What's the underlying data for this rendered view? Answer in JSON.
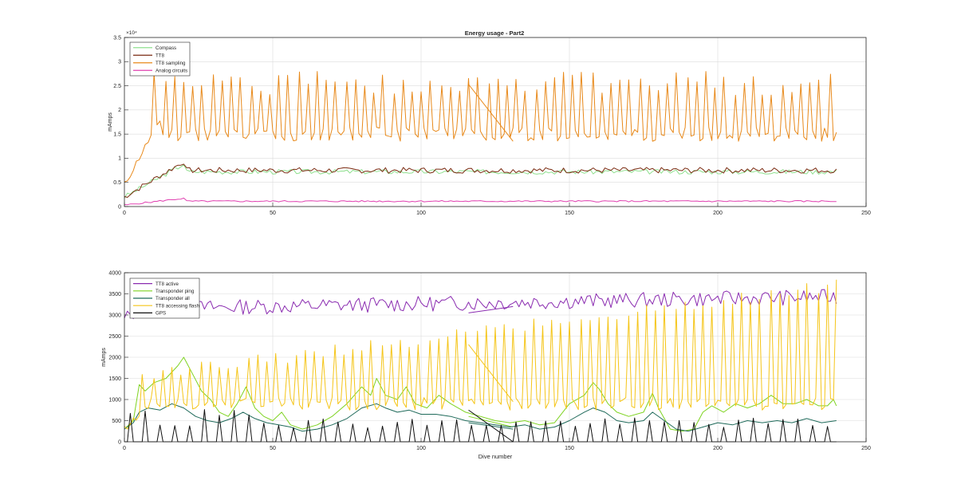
{
  "figure_title": "Energy usage - Part2",
  "chart_data": [
    {
      "type": "line",
      "title": "Energy usage - Part2",
      "xlabel": "",
      "ylabel": "mAmps",
      "xlim": [
        0,
        250
      ],
      "ylim": [
        0,
        35000
      ],
      "y_exponent_label": "×10⁴",
      "y_tick_labels": [
        "0",
        "0.5",
        "1",
        "1.5",
        "2",
        "2.5",
        "3",
        "3.5"
      ],
      "y_tick_values": [
        0,
        5000,
        10000,
        15000,
        20000,
        25000,
        30000,
        35000
      ],
      "x_tick_labels": [
        "0",
        "50",
        "100",
        "150",
        "200",
        "250"
      ],
      "x_tick_values": [
        0,
        50,
        100,
        150,
        200,
        250
      ],
      "grid": true,
      "legend_position": "top-left",
      "series": [
        {
          "name": "Compass",
          "color": "#8fe08f",
          "pattern": {
            "kind": "noisy",
            "start": 2000,
            "ramp_to": 8800,
            "ramp_end": 20,
            "base": 7200,
            "amp": 500,
            "seed": 3,
            "x_max": 240
          }
        },
        {
          "name": "TT8",
          "color": "#7a2a10",
          "pattern": {
            "kind": "noisy",
            "start": 2000,
            "ramp_to": 9300,
            "ramp_end": 20,
            "base": 7500,
            "amp": 600,
            "seed": 7,
            "x_max": 240
          }
        },
        {
          "name": "TT8 sampling",
          "color": "#e8891a",
          "pattern": {
            "kind": "spiky",
            "start": 4500,
            "ramp_to": 18000,
            "ramp_end": 12,
            "base": 15000,
            "base_amp": 1500,
            "peak": 25500,
            "peak_amp": 2500,
            "period": 3.2,
            "seed": 11,
            "x_max": 240,
            "first_peak_x": 10
          },
          "artifact": {
            "from": [
              116,
              25300
            ],
            "to": [
              131,
              13500
            ]
          }
        },
        {
          "name": "Analog circuits",
          "color": "#e040b0",
          "pattern": {
            "kind": "noisy",
            "start": 300,
            "ramp_to": 1700,
            "ramp_end": 20,
            "base": 1100,
            "amp": 150,
            "seed": 5,
            "x_max": 240
          }
        }
      ]
    },
    {
      "type": "line",
      "title": "",
      "xlabel": "Dive number",
      "ylabel": "mAmps",
      "xlim": [
        0,
        250
      ],
      "ylim": [
        0,
        4000
      ],
      "y_tick_labels": [
        "0",
        "500",
        "1000",
        "1500",
        "2000",
        "2500",
        "3000",
        "3500",
        "4000"
      ],
      "y_tick_values": [
        0,
        500,
        1000,
        1500,
        2000,
        2500,
        3000,
        3500,
        4000
      ],
      "x_tick_labels": [
        "0",
        "50",
        "100",
        "150",
        "200",
        "250"
      ],
      "x_tick_values": [
        0,
        50,
        100,
        150,
        200,
        250
      ],
      "grid": true,
      "legend_position": "top-left",
      "series": [
        {
          "name": "TT8 active",
          "color": "#8a2bb0",
          "pattern": {
            "kind": "noisy",
            "start": 2900,
            "ramp_to": 3150,
            "ramp_end": 5,
            "base": 3150,
            "amp": 180,
            "trend": 1.2,
            "seed": 13,
            "x_max": 240
          },
          "artifact": {
            "from": [
              116,
              3050
            ],
            "to": [
              131,
              3200
            ]
          }
        },
        {
          "name": "Transponder ping",
          "color": "#7ed321",
          "points": [
            [
              0,
              300
            ],
            [
              3,
              500
            ],
            [
              5,
              1350
            ],
            [
              7,
              1200
            ],
            [
              10,
              1400
            ],
            [
              14,
              1500
            ],
            [
              18,
              1800
            ],
            [
              20,
              2000
            ],
            [
              23,
              1600
            ],
            [
              26,
              1200
            ],
            [
              29,
              1000
            ],
            [
              32,
              700
            ],
            [
              35,
              600
            ],
            [
              38,
              900
            ],
            [
              41,
              1300
            ],
            [
              44,
              800
            ],
            [
              47,
              600
            ],
            [
              50,
              500
            ],
            [
              53,
              700
            ],
            [
              56,
              400
            ],
            [
              60,
              300
            ],
            [
              65,
              400
            ],
            [
              70,
              600
            ],
            [
              75,
              900
            ],
            [
              80,
              1300
            ],
            [
              83,
              1100
            ],
            [
              85,
              1500
            ],
            [
              88,
              1100
            ],
            [
              92,
              1000
            ],
            [
              95,
              1300
            ],
            [
              98,
              900
            ],
            [
              102,
              800
            ],
            [
              106,
              1100
            ],
            [
              110,
              900
            ],
            [
              115,
              700
            ],
            [
              120,
              600
            ],
            [
              125,
              500
            ],
            [
              130,
              450
            ],
            [
              135,
              500
            ],
            [
              140,
              400
            ],
            [
              145,
              450
            ],
            [
              150,
              900
            ],
            [
              155,
              1100
            ],
            [
              158,
              1400
            ],
            [
              160,
              1250
            ],
            [
              163,
              900
            ],
            [
              166,
              700
            ],
            [
              170,
              600
            ],
            [
              175,
              700
            ],
            [
              178,
              1150
            ],
            [
              180,
              800
            ],
            [
              184,
              300
            ],
            [
              188,
              250
            ],
            [
              192,
              300
            ],
            [
              195,
              700
            ],
            [
              198,
              850
            ],
            [
              202,
              700
            ],
            [
              206,
              900
            ],
            [
              210,
              800
            ],
            [
              214,
              900
            ],
            [
              218,
              1100
            ],
            [
              222,
              900
            ],
            [
              226,
              900
            ],
            [
              230,
              1000
            ],
            [
              234,
              850
            ],
            [
              237,
              850
            ],
            [
              239,
              1000
            ],
            [
              240,
              850
            ]
          ],
          "artifact": {
            "from": [
              116,
              600
            ],
            "to": [
              131,
              350
            ]
          }
        },
        {
          "name": "Transponder all",
          "color": "#1f6a5a",
          "points": [
            [
              0,
              300
            ],
            [
              3,
              450
            ],
            [
              5,
              700
            ],
            [
              8,
              800
            ],
            [
              12,
              750
            ],
            [
              16,
              900
            ],
            [
              20,
              800
            ],
            [
              24,
              600
            ],
            [
              28,
              500
            ],
            [
              32,
              450
            ],
            [
              36,
              550
            ],
            [
              40,
              700
            ],
            [
              44,
              550
            ],
            [
              48,
              450
            ],
            [
              52,
              400
            ],
            [
              56,
              350
            ],
            [
              60,
              250
            ],
            [
              65,
              300
            ],
            [
              70,
              400
            ],
            [
              75,
              550
            ],
            [
              80,
              800
            ],
            [
              85,
              900
            ],
            [
              88,
              800
            ],
            [
              92,
              700
            ],
            [
              96,
              750
            ],
            [
              100,
              650
            ],
            [
              105,
              650
            ],
            [
              110,
              600
            ],
            [
              115,
              500
            ],
            [
              120,
              450
            ],
            [
              125,
              400
            ],
            [
              130,
              350
            ],
            [
              135,
              400
            ],
            [
              140,
              300
            ],
            [
              145,
              350
            ],
            [
              150,
              500
            ],
            [
              155,
              700
            ],
            [
              158,
              800
            ],
            [
              162,
              700
            ],
            [
              166,
              500
            ],
            [
              170,
              450
            ],
            [
              175,
              500
            ],
            [
              178,
              700
            ],
            [
              182,
              500
            ],
            [
              186,
              300
            ],
            [
              190,
              250
            ],
            [
              195,
              350
            ],
            [
              200,
              450
            ],
            [
              205,
              400
            ],
            [
              210,
              500
            ],
            [
              215,
              450
            ],
            [
              220,
              500
            ],
            [
              225,
              450
            ],
            [
              230,
              550
            ],
            [
              235,
              450
            ],
            [
              240,
              500
            ]
          ],
          "artifact": {
            "from": [
              116,
              450
            ],
            "to": [
              131,
              300
            ]
          }
        },
        {
          "name": "TT8 accessing flash",
          "color": "#f5c518",
          "pattern": {
            "kind": "spiky_growing",
            "start": 300,
            "ramp_to": 700,
            "ramp_end": 6,
            "base": 900,
            "base_amp": 150,
            "peak_start": 1500,
            "peak_end": 3700,
            "peak_amp": 150,
            "period": 3.2,
            "seed": 17,
            "x_max": 240,
            "first_peak_x": 6
          },
          "artifact": {
            "from": [
              116,
              2300
            ],
            "to": [
              131,
              950
            ]
          }
        },
        {
          "name": "GPS",
          "color": "#111111",
          "pattern": {
            "kind": "gps",
            "period": 5.0,
            "peak": 450,
            "peak_amp": 120,
            "seed": 19,
            "x_max": 240,
            "first_peak_x": 2
          },
          "artifact": {
            "from": [
              116,
              750
            ],
            "to": [
              131,
              0
            ]
          }
        }
      ]
    }
  ]
}
